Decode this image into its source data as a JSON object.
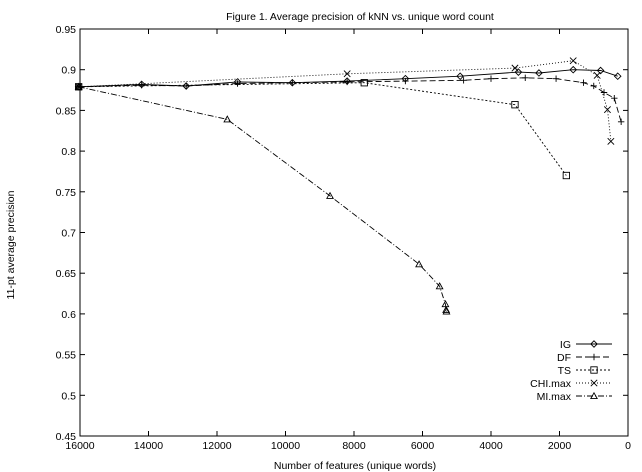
{
  "chart_data": {
    "type": "line",
    "title": "Figure 1. Average precision of kNN vs. unique word count",
    "xlabel": "Number of features (unique words)",
    "ylabel": "11-pt average precision",
    "xlim": [
      16000,
      0
    ],
    "ylim": [
      0.45,
      0.95
    ],
    "x_reversed": true,
    "x_ticks": [
      16000,
      14000,
      12000,
      10000,
      8000,
      6000,
      4000,
      2000,
      0
    ],
    "x_tick_labels": [
      "16000",
      "14000",
      "12000",
      "10000",
      "8000",
      "6000",
      "4000",
      "2000",
      "0"
    ],
    "y_ticks": [
      0.45,
      0.5,
      0.55,
      0.6,
      0.65,
      0.7,
      0.75,
      0.8,
      0.85,
      0.9,
      0.95
    ],
    "y_tick_labels": [
      "0.45",
      "0.5",
      "0.55",
      "0.6",
      "0.65",
      "0.7",
      "0.75",
      "0.8",
      "0.85",
      "0.9",
      "0.95"
    ],
    "grid": false,
    "legend_position": "bottom-right",
    "series": [
      {
        "name": "IG",
        "marker": "diamond",
        "dash": "",
        "x": [
          16039,
          14200,
          12900,
          11400,
          9800,
          8200,
          6500,
          4900,
          3200,
          2600,
          1600,
          800,
          300
        ],
        "y": [
          0.879,
          0.882,
          0.88,
          0.885,
          0.884,
          0.886,
          0.889,
          0.892,
          0.897,
          0.896,
          0.9,
          0.899,
          0.892
        ]
      },
      {
        "name": "DF",
        "marker": "plus",
        "dash": "6,3",
        "x": [
          16039,
          14200,
          12900,
          11400,
          9800,
          8200,
          6500,
          4800,
          4000,
          3000,
          2100,
          1300,
          1000,
          700,
          400,
          200
        ],
        "y": [
          0.879,
          0.881,
          0.88,
          0.883,
          0.884,
          0.885,
          0.886,
          0.887,
          0.889,
          0.89,
          0.889,
          0.884,
          0.88,
          0.872,
          0.865,
          0.836
        ]
      },
      {
        "name": "TS",
        "marker": "square",
        "dash": "2,2",
        "x": [
          16039,
          7700,
          3300,
          1800
        ],
        "y": [
          0.879,
          0.884,
          0.857,
          0.77
        ]
      },
      {
        "name": "CHI.max",
        "marker": "x",
        "dash": "1,2",
        "x": [
          16039,
          8200,
          3300,
          1600,
          900,
          600,
          500
        ],
        "y": [
          0.879,
          0.895,
          0.902,
          0.911,
          0.893,
          0.851,
          0.812
        ]
      },
      {
        "name": "MI.max",
        "marker": "triangle",
        "dash": "6,2,1,2",
        "x": [
          16039,
          11700,
          8700,
          6100,
          5500,
          5330,
          5310,
          5300
        ],
        "y": [
          0.879,
          0.839,
          0.745,
          0.661,
          0.634,
          0.612,
          0.605,
          0.603
        ]
      }
    ]
  }
}
